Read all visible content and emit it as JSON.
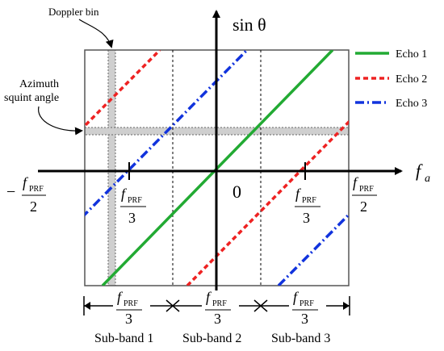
{
  "annotations": {
    "doppler_bin": "Doppler bin",
    "azimuth_line1": "Azimuth",
    "azimuth_line2": "squint angle"
  },
  "axes": {
    "y_label": "sin θ",
    "x_label_main": "f",
    "x_label_sub": "a",
    "origin_label": "0"
  },
  "fractions": {
    "f": "f",
    "sub": "PRF",
    "den2": "2",
    "den3": "3",
    "minus": "−"
  },
  "legend": {
    "items": [
      {
        "label": "Echo 1",
        "color": "#22aa33",
        "style": "solid"
      },
      {
        "label": "Echo 2",
        "color": "#ee2222",
        "style": "dashed"
      },
      {
        "label": "Echo 3",
        "color": "#1133dd",
        "style": "dashdot"
      }
    ]
  },
  "subbands": [
    "Sub-band 1",
    "Sub-band 2",
    "Sub-band 3"
  ]
}
